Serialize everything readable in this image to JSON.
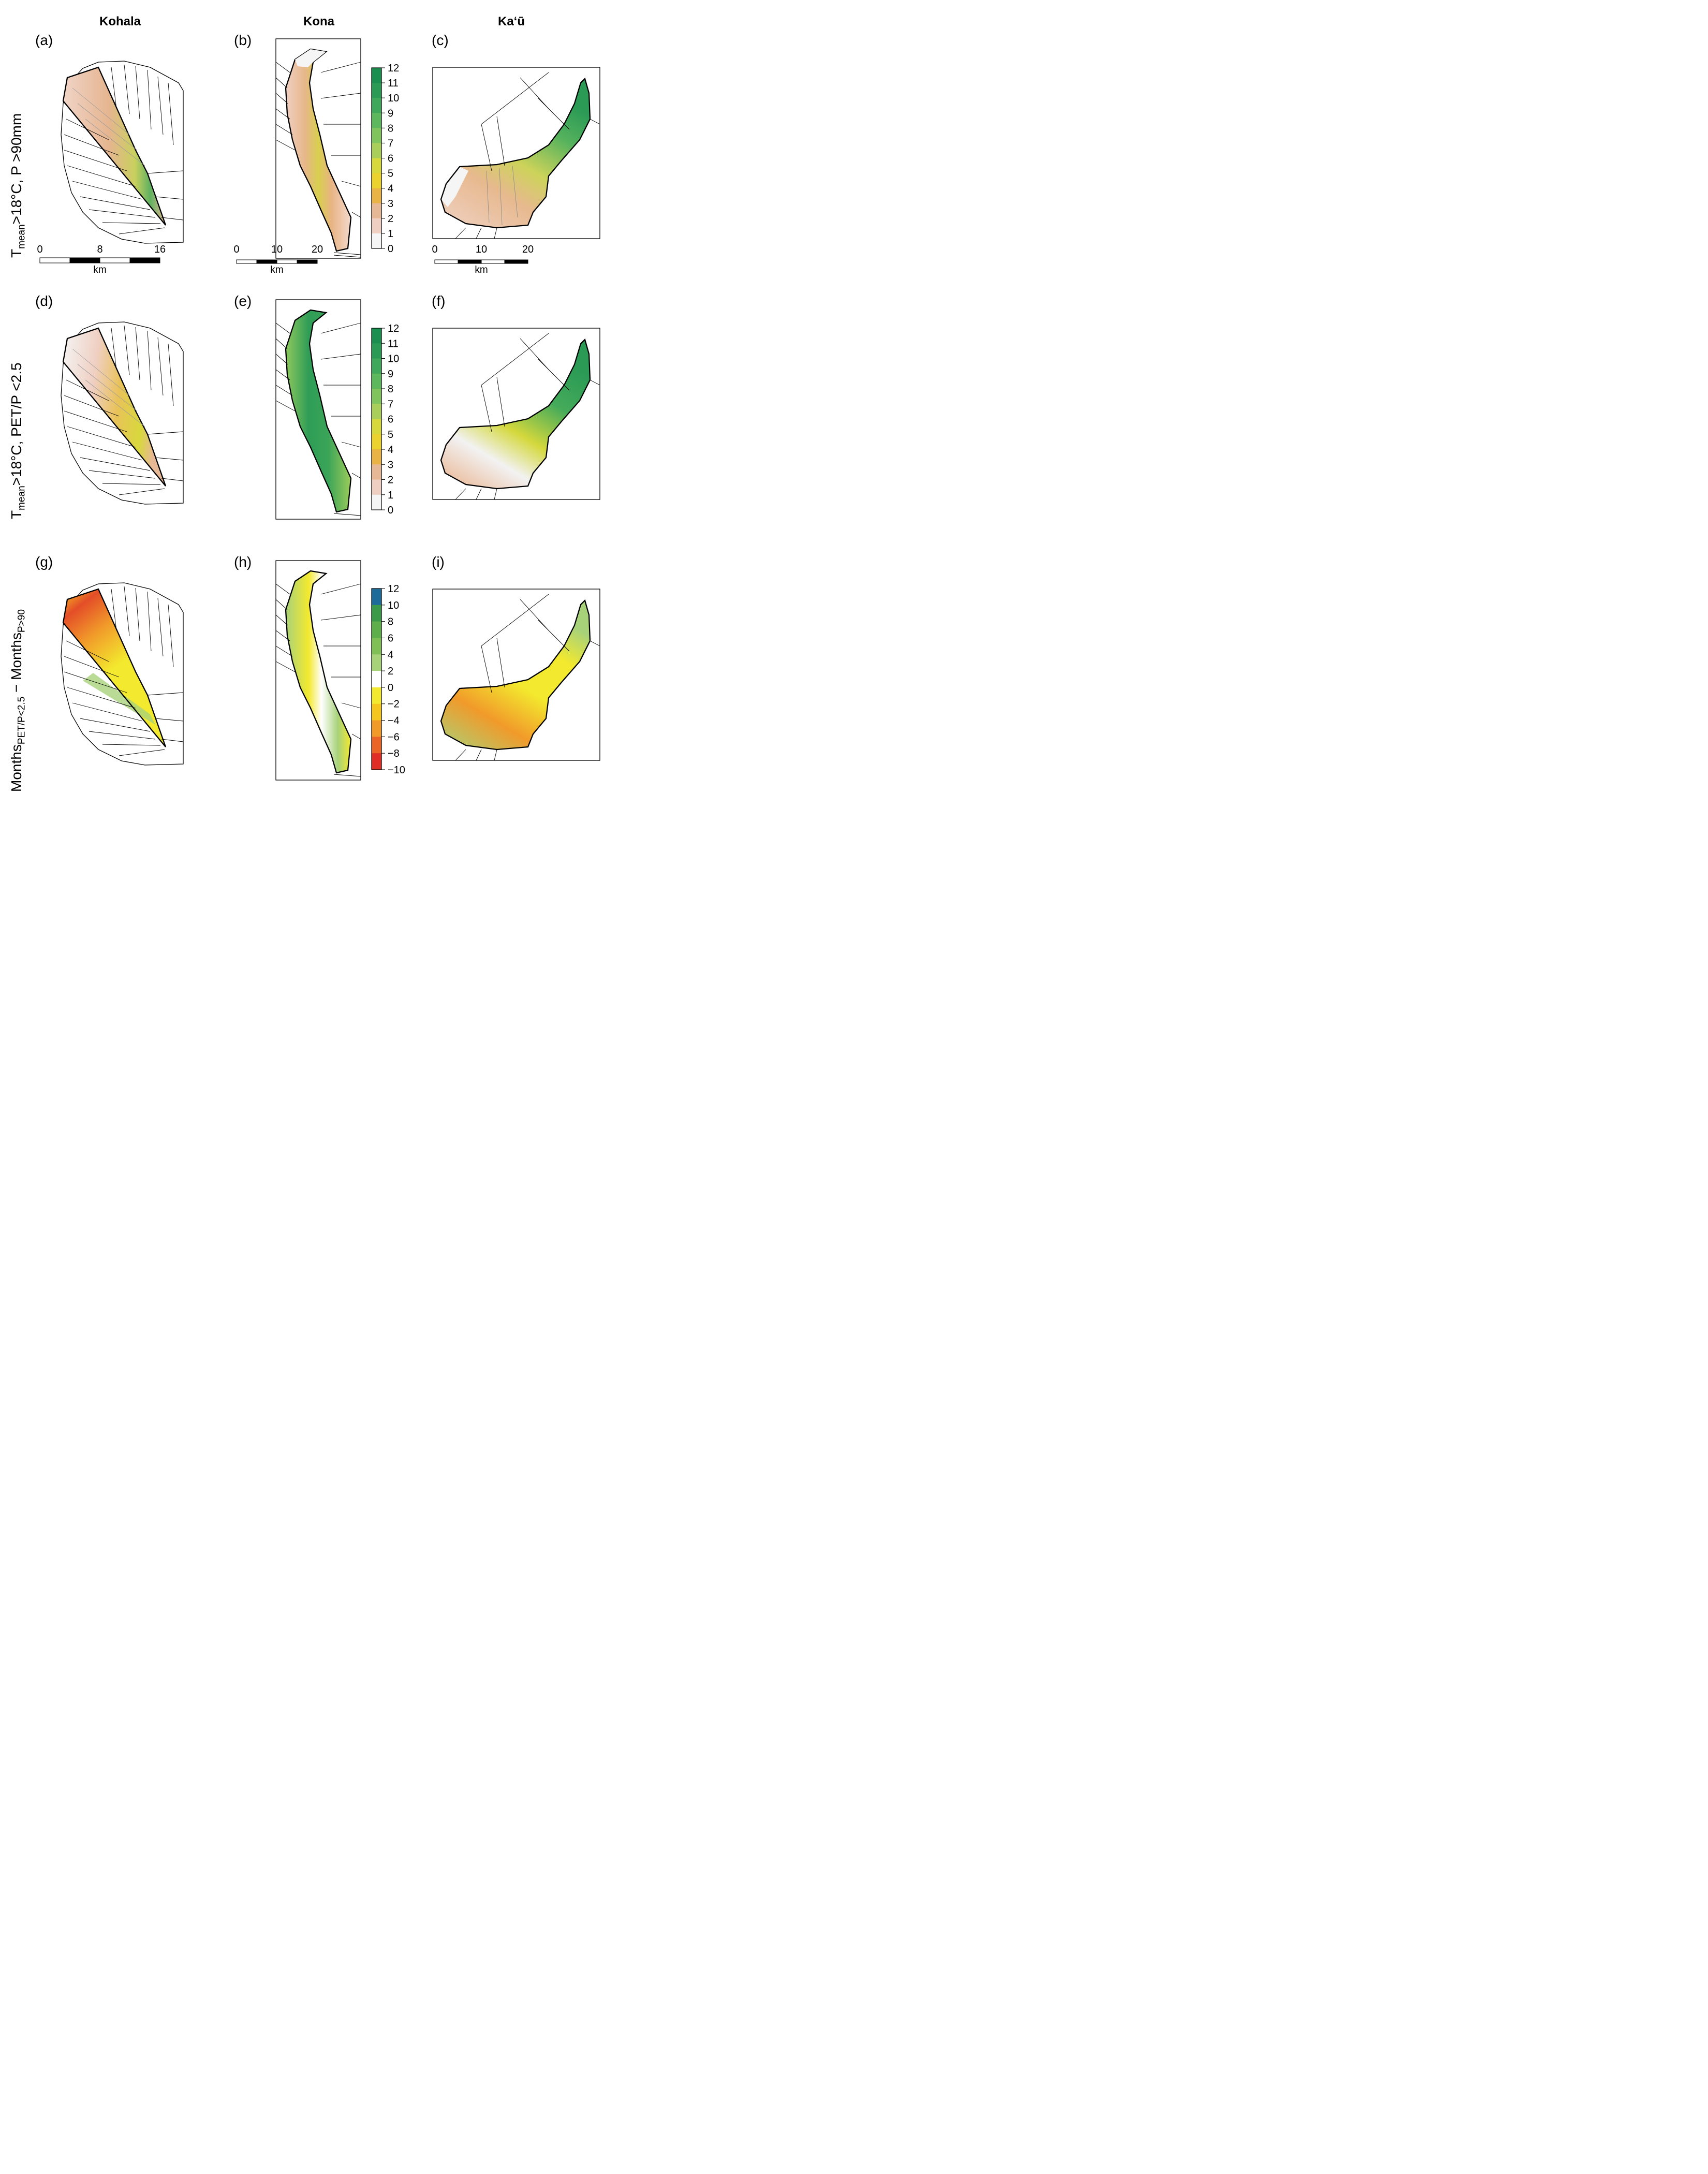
{
  "columns": [
    "Kohala",
    "Kona",
    "Ka‘ū"
  ],
  "rows": [
    {
      "label_main": "T",
      "label_sub": "mean",
      "label_rest": ">18°C, P >90mm"
    },
    {
      "label_main": "T",
      "label_sub": "mean",
      "label_rest": ">18°C, PET/P <2.5"
    },
    {
      "label_main": "Months",
      "label_sub": "PET/P<2.5",
      "label_mid": " − Months",
      "label_sub2": "P>90",
      "label_rest": ""
    }
  ],
  "panels": [
    "(a)",
    "(b)",
    "(c)",
    "(d)",
    "(e)",
    "(f)",
    "(g)",
    "(h)",
    "(i)"
  ],
  "colorbars": {
    "months": {
      "ticks": [
        "12",
        "11",
        "10",
        "9",
        "8",
        "7",
        "6",
        "5",
        "4",
        "3",
        "2",
        "1",
        "0"
      ],
      "colors": [
        "#1a8f4f",
        "#2a9a55",
        "#3fa85a",
        "#5db75c",
        "#80c45e",
        "#a9cf5a",
        "#d6d83c",
        "#ecd22e",
        "#e9b445",
        "#e7b896",
        "#efcfc2",
        "#f5f5f5"
      ]
    },
    "difference": {
      "ticks": [
        "12",
        "10",
        "8",
        "6",
        "4",
        "2",
        "0",
        "−2",
        "−4",
        "−6",
        "−8",
        "−10"
      ],
      "colors": [
        "#1d6b98",
        "#3a9a48",
        "#5fae4c",
        "#7fbf55",
        "#a8d27a",
        "#ffffff",
        "#f3e92e",
        "#f5c71e",
        "#f19a2a",
        "#ea6428",
        "#e02d26"
      ]
    }
  },
  "scalebars": [
    {
      "ticks": [
        "0",
        "8",
        "16"
      ],
      "unit": "km"
    },
    {
      "ticks": [
        "0",
        "10",
        "20"
      ],
      "unit": "km"
    },
    {
      "ticks": [
        "0",
        "10",
        "20"
      ],
      "unit": "km"
    }
  ]
}
